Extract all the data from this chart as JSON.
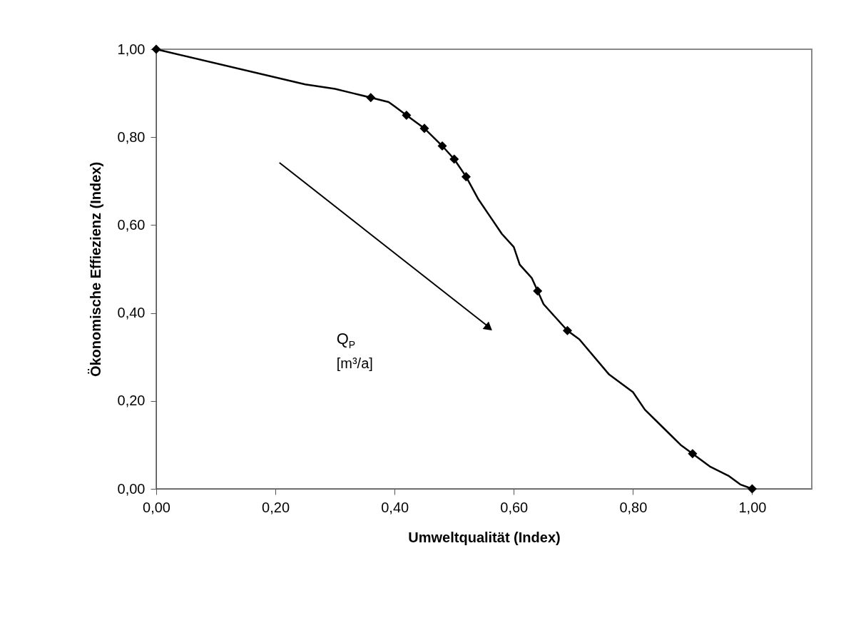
{
  "chart_data": {
    "type": "line",
    "xlabel": "Umweltqualität (Index)",
    "ylabel": "Ökonomische Effiezienz (Index)",
    "xlim": [
      0,
      1.1
    ],
    "ylim": [
      0,
      1
    ],
    "xticks": [
      {
        "value": 0,
        "label": "0,00"
      },
      {
        "value": 0.2,
        "label": "0,20"
      },
      {
        "value": 0.4,
        "label": "0,40"
      },
      {
        "value": 0.6,
        "label": "0,60"
      },
      {
        "value": 0.8,
        "label": "0,80"
      },
      {
        "value": 1,
        "label": "1,00"
      }
    ],
    "yticks": [
      {
        "value": 0,
        "label": "0,00"
      },
      {
        "value": 0.2,
        "label": "0,20"
      },
      {
        "value": 0.4,
        "label": "0,40"
      },
      {
        "value": 0.6,
        "label": "0,60"
      },
      {
        "value": 0.8,
        "label": "0,80"
      },
      {
        "value": 1,
        "label": "1,00"
      }
    ],
    "grid": false,
    "annotations": [
      "Q$_{P}$ [m³/a]"
    ],
    "series": [
      {
        "color": "#000000",
        "x": [
          0,
          0.25,
          0.3,
          0.33,
          0.36,
          0.39,
          0.4,
          0.42,
          0.44,
          0.45,
          0.48,
          0.5,
          0.52,
          0.54,
          0.56,
          0.58,
          0.6,
          0.61,
          0.63,
          0.64,
          0.65,
          0.69,
          0.71,
          0.76,
          0.8,
          0.82,
          0.85,
          0.88,
          0.9,
          0.93,
          0.96,
          0.98,
          1.0
        ],
        "values": [
          1,
          0.92,
          0.91,
          0.9,
          0.89,
          0.88,
          0.87,
          0.85,
          0.83,
          0.82,
          0.78,
          0.75,
          0.71,
          0.66,
          0.62,
          0.58,
          0.55,
          0.51,
          0.48,
          0.45,
          0.42,
          0.36,
          0.34,
          0.26,
          0.22,
          0.18,
          0.14,
          0.1,
          0.08,
          0.05,
          0.03,
          0.01,
          0
        ]
      },
      {
        "type": "scatter",
        "color": "#000000",
        "marker": "diamond",
        "x": [
          0,
          0.36,
          0.42,
          0.45,
          0.48,
          0.5,
          0.52,
          0.64,
          0.69,
          0.9,
          1.0
        ],
        "values": [
          1,
          0.89,
          0.85,
          0.82,
          0.78,
          0.75,
          0.71,
          0.45,
          0.36,
          0.08,
          0
        ]
      }
    ]
  }
}
